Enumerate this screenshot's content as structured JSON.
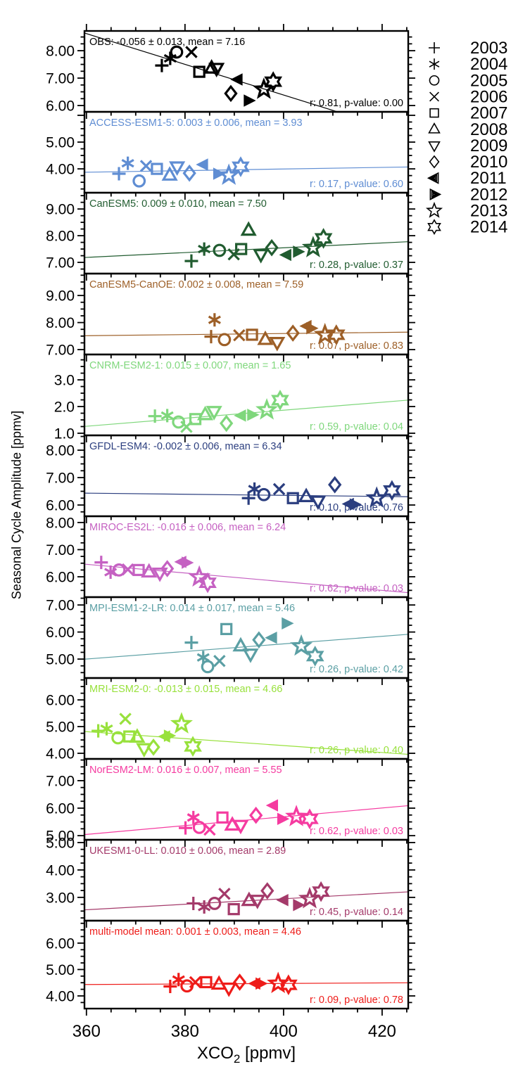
{
  "figure": {
    "background": "#ffffff",
    "axis_color": "#000000",
    "y_axis_label": "Seasonal Cycle Amplitude [ppmv]",
    "x_axis_label": "XCO2 [ppmv]",
    "x_axis_label_parts": {
      "prefix": "XCO",
      "sub": "2",
      "suffix": " [ppmv]"
    }
  },
  "legend": {
    "entries": [
      {
        "year": "2003",
        "symbol": "plus"
      },
      {
        "year": "2004",
        "symbol": "asterisk"
      },
      {
        "year": "2005",
        "symbol": "circle"
      },
      {
        "year": "2006",
        "symbol": "cross"
      },
      {
        "year": "2007",
        "symbol": "square"
      },
      {
        "year": "2008",
        "symbol": "triangle-up"
      },
      {
        "year": "2009",
        "symbol": "triangle-down"
      },
      {
        "year": "2010",
        "symbol": "diamond"
      },
      {
        "year": "2011",
        "symbol": "triangle-left"
      },
      {
        "year": "2012",
        "symbol": "triangle-right"
      },
      {
        "year": "2013",
        "symbol": "star5"
      },
      {
        "year": "2014",
        "symbol": "star6"
      }
    ]
  },
  "chart_data": {
    "type": "scatter",
    "title": "",
    "xlabel": "XCO2 [ppmv]",
    "ylabel": "Seasonal Cycle Amplitude [ppmv]",
    "xlim": [
      359.6,
      425.3
    ],
    "xticks": {
      "major": [
        360,
        380,
        400,
        420
      ],
      "labels": [
        "360",
        "380",
        "400",
        "420"
      ],
      "minor_step": 5
    },
    "years": [
      2003,
      2004,
      2005,
      2006,
      2007,
      2008,
      2009,
      2010,
      2011,
      2012,
      2013,
      2014
    ],
    "markers_by_year": [
      "plus",
      "asterisk",
      "circle",
      "cross",
      "square",
      "triangle-up",
      "triangle-down",
      "diamond",
      "triangle-left",
      "triangle-right",
      "star5",
      "star6"
    ],
    "panels": [
      {
        "model": "OBS",
        "color": "#000000",
        "title": "OBS: -0.056 ± 0.013, mean = 7.16",
        "stats": "r: 0.81, p-value: 0.00",
        "slope": -0.056,
        "mean": 7.16,
        "r": 0.81,
        "p": 0.0,
        "ylim": [
          5.77,
          8.72
        ],
        "yticks": [
          {
            "value": 6,
            "label": "6.00"
          },
          {
            "value": 7,
            "label": "7.00"
          },
          {
            "value": 8,
            "label": "8.00"
          }
        ],
        "x": [
          375.3,
          377.0,
          378.3,
          381.3,
          382.9,
          385.4,
          386.4,
          389.3,
          390.7,
          392.9,
          396.0,
          397.9
        ],
        "y": [
          7.46,
          7.72,
          7.95,
          7.95,
          7.23,
          7.36,
          7.36,
          6.44,
          6.95,
          6.18,
          6.59,
          6.87
        ]
      },
      {
        "model": "ACCESS-ESM1-5",
        "color": "#5f8dd3",
        "title": "ACCESS-ESM1-5: 0.003 ± 0.006, mean = 3.93",
        "stats": "r: 0.17, p-value: 0.60",
        "slope": 0.003,
        "mean": 3.93,
        "r": 0.17,
        "p": 0.6,
        "ylim": [
          3.11,
          6.13
        ],
        "yticks": [
          {
            "value": 4,
            "label": "4.00"
          },
          {
            "value": 5,
            "label": "5.00"
          }
        ],
        "x": [
          366.6,
          368.4,
          370.7,
          372.1,
          374.3,
          376.9,
          378.4,
          380.9,
          383.7,
          386.7,
          388.9,
          391.3
        ],
        "y": [
          3.82,
          4.21,
          3.55,
          4.11,
          4.0,
          3.76,
          4.08,
          3.84,
          4.16,
          3.82,
          3.76,
          4.08
        ]
      },
      {
        "model": "CanESM5",
        "color": "#215c30",
        "title": "CanESM5: 0.009 ± 0.010, mean = 7.50",
        "stats": "r: 0.28, p-value: 0.37",
        "slope": 0.009,
        "mean": 7.5,
        "r": 0.28,
        "p": 0.37,
        "ylim": [
          6.58,
          9.61
        ],
        "yticks": [
          {
            "value": 7,
            "label": "7.00"
          },
          {
            "value": 8,
            "label": "8.00"
          },
          {
            "value": 9,
            "label": "9.00"
          }
        ],
        "x": [
          381.3,
          383.9,
          387.0,
          389.9,
          391.4,
          392.9,
          395.4,
          397.6,
          400.6,
          402.9,
          406.0,
          408.1
        ],
        "y": [
          7.05,
          7.5,
          7.45,
          7.3,
          7.5,
          8.2,
          7.3,
          7.55,
          7.28,
          7.4,
          7.55,
          7.9
        ]
      },
      {
        "model": "CanESM5-CanOE",
        "color": "#9d5f27",
        "title": "CanESM5-CanOE: 0.002 ± 0.008, mean = 7.59",
        "stats": "r: 0.07, p-value: 0.83",
        "slope": 0.002,
        "mean": 7.59,
        "r": 0.07,
        "p": 0.83,
        "ylim": [
          6.82,
          9.81
        ],
        "yticks": [
          {
            "value": 7,
            "label": "7.00"
          },
          {
            "value": 8,
            "label": "8.00"
          },
          {
            "value": 9,
            "label": "9.00"
          }
        ],
        "x": [
          385.3,
          386.0,
          388.0,
          391.0,
          393.6,
          396.3,
          398.7,
          401.9,
          404.7,
          405.6,
          408.4,
          410.7
        ],
        "y": [
          7.48,
          8.1,
          7.37,
          7.53,
          7.55,
          7.37,
          7.27,
          7.61,
          7.87,
          7.79,
          7.55,
          7.55
        ]
      },
      {
        "model": "CNRM-ESM2-1",
        "color": "#7fd77c",
        "title": "CNRM-ESM2-1: 0.015 ± 0.007, mean = 1.65",
        "stats": "r: 0.59, p-value: 0.04",
        "slope": 0.015,
        "mean": 1.65,
        "r": 0.59,
        "p": 0.04,
        "ylim": [
          0.92,
          3.95
        ],
        "yticks": [
          {
            "value": 1,
            "label": "1.0"
          },
          {
            "value": 2,
            "label": "2.0"
          },
          {
            "value": 3,
            "label": "3.0"
          }
        ],
        "x": [
          373.9,
          376.4,
          378.7,
          380.3,
          382.1,
          384.1,
          385.9,
          388.4,
          391.4,
          393.6,
          396.6,
          399.3
        ],
        "y": [
          1.64,
          1.66,
          1.42,
          1.24,
          1.53,
          1.69,
          1.82,
          1.37,
          1.66,
          1.69,
          1.87,
          2.24
        ]
      },
      {
        "model": "GFDL-ESM4",
        "color": "#2b3e7f",
        "title": "GFDL-ESM4: -0.002 ± 0.006, mean = 6.34",
        "stats": "r: 0.10, p-value: 0.76",
        "slope": -0.002,
        "mean": 6.34,
        "r": 0.1,
        "p": 0.76,
        "ylim": [
          5.59,
          8.54
        ],
        "yticks": [
          {
            "value": 6,
            "label": "6.00"
          },
          {
            "value": 7,
            "label": "7.00"
          },
          {
            "value": 8,
            "label": "8.00"
          }
        ],
        "x": [
          392.9,
          394.1,
          396.0,
          399.1,
          401.9,
          404.6,
          407.0,
          410.4,
          413.3,
          414.4,
          418.9,
          422.0
        ],
        "y": [
          6.25,
          6.58,
          6.38,
          6.58,
          6.25,
          6.3,
          6.15,
          6.74,
          6.04,
          6.02,
          6.25,
          6.53
        ]
      },
      {
        "model": "MIROC-ES2L",
        "color": "#c561c2",
        "title": "MIROC-ES2L: -0.016 ± 0.006, mean = 6.24",
        "stats": "r: 0.62, p-value: 0.03",
        "slope": -0.016,
        "mean": 6.24,
        "r": 0.62,
        "p": 0.03,
        "ylim": [
          5.25,
          8.23
        ],
        "yticks": [
          {
            "value": 6,
            "label": "6.00"
          },
          {
            "value": 7,
            "label": "7.00"
          },
          {
            "value": 8,
            "label": "8.00"
          }
        ],
        "x": [
          363.0,
          364.9,
          366.6,
          368.4,
          370.6,
          372.7,
          374.9,
          376.4,
          379.3,
          380.3,
          382.9,
          384.6
        ],
        "y": [
          6.53,
          6.17,
          6.25,
          6.27,
          6.25,
          6.17,
          6.14,
          6.3,
          6.55,
          6.52,
          5.99,
          5.78
        ]
      },
      {
        "model": "MPI-ESM1-2-LR",
        "color": "#5b9fa4",
        "title": "MPI-ESM1-2-LR: 0.014 ± 0.017, mean = 5.46",
        "stats": "r: 0.26, p-value: 0.42",
        "slope": 0.014,
        "mean": 5.46,
        "r": 0.26,
        "p": 0.42,
        "ylim": [
          4.3,
          7.29
        ],
        "yticks": [
          {
            "value": 5,
            "label": "5.00"
          },
          {
            "value": 6,
            "label": "6.00"
          },
          {
            "value": 7,
            "label": "7.00"
          }
        ],
        "x": [
          381.3,
          383.7,
          384.6,
          387.0,
          388.4,
          391.3,
          393.3,
          395.0,
          397.7,
          400.6,
          403.6,
          406.4
        ],
        "y": [
          5.61,
          5.06,
          4.72,
          4.93,
          6.11,
          5.48,
          5.19,
          5.71,
          5.79,
          6.32,
          5.48,
          5.11
        ]
      },
      {
        "model": "MRI-ESM2-0",
        "color": "#98e13c",
        "title": "MRI-ESM2-0: -0.013 ± 0.015, mean = 4.66",
        "stats": "r: 0.26, p-value: 0.40",
        "slope": -0.013,
        "mean": 4.66,
        "r": 0.26,
        "p": 0.4,
        "ylim": [
          3.79,
          6.82
        ],
        "yticks": [
          {
            "value": 4,
            "label": "4.00"
          },
          {
            "value": 5,
            "label": "5.00"
          },
          {
            "value": 6,
            "label": "6.00"
          }
        ],
        "x": [
          362.4,
          364.1,
          366.4,
          367.9,
          368.7,
          370.3,
          371.7,
          373.6,
          376.0,
          376.7,
          379.3,
          381.6
        ],
        "y": [
          4.84,
          4.92,
          4.58,
          5.29,
          4.63,
          4.6,
          4.18,
          4.23,
          4.63,
          4.66,
          5.1,
          4.26
        ]
      },
      {
        "model": "NorESM2-LM",
        "color": "#f53ba0",
        "title": "NorESM2-LM: 0.016 ± 0.007, mean = 5.55",
        "stats": "r: 0.62, p-value: 0.03",
        "slope": 0.016,
        "mean": 5.55,
        "r": 0.62,
        "p": 0.03,
        "ylim": [
          4.85,
          7.79
        ],
        "yticks": [
          {
            "value": 5,
            "label": "5.00"
          },
          {
            "value": 6,
            "label": "6.00"
          },
          {
            "value": 7,
            "label": "7.00"
          }
        ],
        "x": [
          380.1,
          381.7,
          382.9,
          385.0,
          387.6,
          389.6,
          391.3,
          394.4,
          397.9,
          399.7,
          402.6,
          405.3
        ],
        "y": [
          5.28,
          5.66,
          5.3,
          5.22,
          5.66,
          5.38,
          5.38,
          5.74,
          6.1,
          5.61,
          5.69,
          5.61
        ]
      },
      {
        "model": "UKESM1-0-LL",
        "color": "#a43a6a",
        "title": "UKESM1-0-LL: 0.010 ± 0.006, mean = 2.89",
        "stats": "r: 0.45, p-value: 0.14",
        "slope": 0.01,
        "mean": 2.89,
        "r": 0.45,
        "p": 0.14,
        "ylim": [
          2.15,
          5.1
        ],
        "yticks": [
          {
            "value": 3,
            "label": "3.00"
          },
          {
            "value": 4,
            "label": "4.00"
          },
          {
            "value": 5,
            "label": "5.00"
          }
        ],
        "x": [
          381.7,
          383.9,
          386.0,
          388.0,
          389.9,
          393.0,
          394.7,
          396.7,
          400.0,
          402.9,
          405.3,
          407.6
        ],
        "y": [
          2.78,
          2.65,
          2.78,
          3.13,
          2.57,
          2.88,
          2.9,
          3.24,
          2.9,
          2.72,
          2.95,
          3.21
        ]
      },
      {
        "model": "multi-model mean",
        "color": "#ee1c19",
        "title": "multi-model mean: 0.001 ± 0.003, mean = 4.46",
        "stats": "r: 0.09, p-value: 0.78",
        "slope": 0.001,
        "mean": 4.46,
        "r": 0.09,
        "p": 0.78,
        "ylim": [
          3.52,
          6.85
        ],
        "yticks": [
          {
            "value": 4,
            "label": "4.00"
          },
          {
            "value": 5,
            "label": "5.00"
          },
          {
            "value": 6,
            "label": "6.00"
          }
        ],
        "x": [
          377.0,
          378.7,
          380.4,
          382.1,
          384.3,
          386.9,
          388.9,
          391.1,
          394.3,
          395.3,
          398.9,
          401.0
        ],
        "y": [
          4.36,
          4.62,
          4.38,
          4.52,
          4.52,
          4.44,
          4.3,
          4.52,
          4.47,
          4.47,
          4.47,
          4.42
        ]
      }
    ]
  }
}
